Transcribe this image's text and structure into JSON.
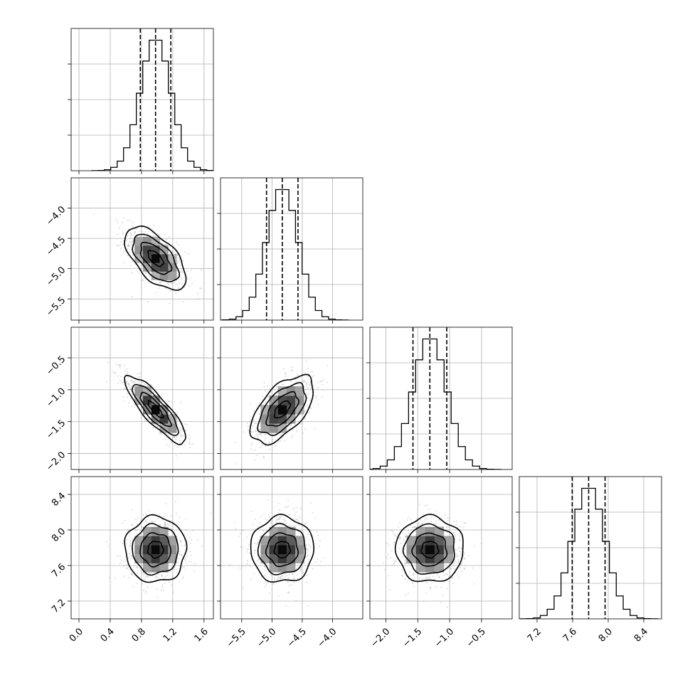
{
  "chart_data": {
    "type": "corner",
    "parameters": [
      {
        "mean": 0.98,
        "std": 0.195,
        "range": [
          -0.1,
          1.72
        ],
        "ticks": [
          0.0,
          0.4,
          0.8,
          1.2,
          1.6
        ],
        "tick_labels": [
          "0.0",
          "0.4",
          "0.8",
          "1.2",
          "1.6"
        ],
        "quantiles": [
          0.785,
          0.98,
          1.175
        ]
      },
      {
        "mean": -4.83,
        "std": 0.26,
        "range": [
          -5.85,
          -3.5
        ],
        "ticks": [
          -5.5,
          -5.0,
          -4.5,
          -4.0
        ],
        "tick_labels": [
          "−5.5",
          "−5.0",
          "−4.5",
          "−4.0"
        ],
        "quantiles": [
          -5.09,
          -4.83,
          -4.57
        ]
      },
      {
        "mean": -1.31,
        "std": 0.265,
        "range": [
          -2.25,
          -0.02
        ],
        "ticks": [
          -2.0,
          -1.5,
          -1.0,
          -0.5
        ],
        "tick_labels": [
          "−2.0",
          "−1.5",
          "−1.0",
          "−0.5"
        ],
        "quantiles": [
          -1.575,
          -1.31,
          -1.045
        ]
      },
      {
        "mean": 7.78,
        "std": 0.185,
        "range": [
          7.0,
          8.6
        ],
        "ticks": [
          7.2,
          7.6,
          8.0,
          8.4
        ],
        "tick_labels": [
          "7.2",
          "7.6",
          "8.0",
          "8.4"
        ],
        "quantiles": [
          7.595,
          7.78,
          7.965
        ]
      }
    ],
    "correlations": [
      [
        1,
        -0.6,
        -0.85,
        0.0
      ],
      [
        -0.6,
        1,
        0.58,
        0.0
      ],
      [
        -0.85,
        0.58,
        1,
        0.0
      ],
      [
        0.0,
        0.0,
        0.0,
        1
      ]
    ],
    "histogram_bins": 20,
    "contour_levels_sigma": [
      0.5,
      1.0,
      1.5,
      2.0
    ],
    "grid": true,
    "quantile_line_style": "dashed",
    "xlabels": [
      "",
      "",
      "",
      ""
    ],
    "ylabels": [
      "",
      "",
      "",
      ""
    ]
  }
}
